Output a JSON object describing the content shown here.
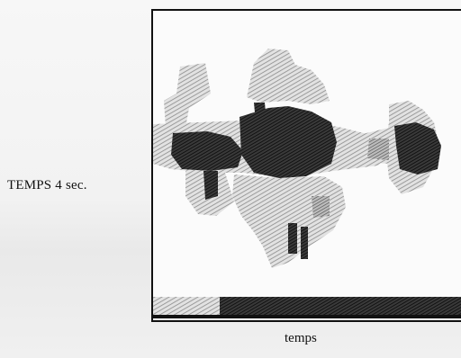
{
  "labels": {
    "side": "TEMPS 4 sec.",
    "x_axis": "temps"
  },
  "colors": {
    "light_hatch": "#9a9a9a",
    "dark_hatch": "#1a1a1a",
    "frame": "#111111",
    "background": "#f4f4f4"
  }
}
